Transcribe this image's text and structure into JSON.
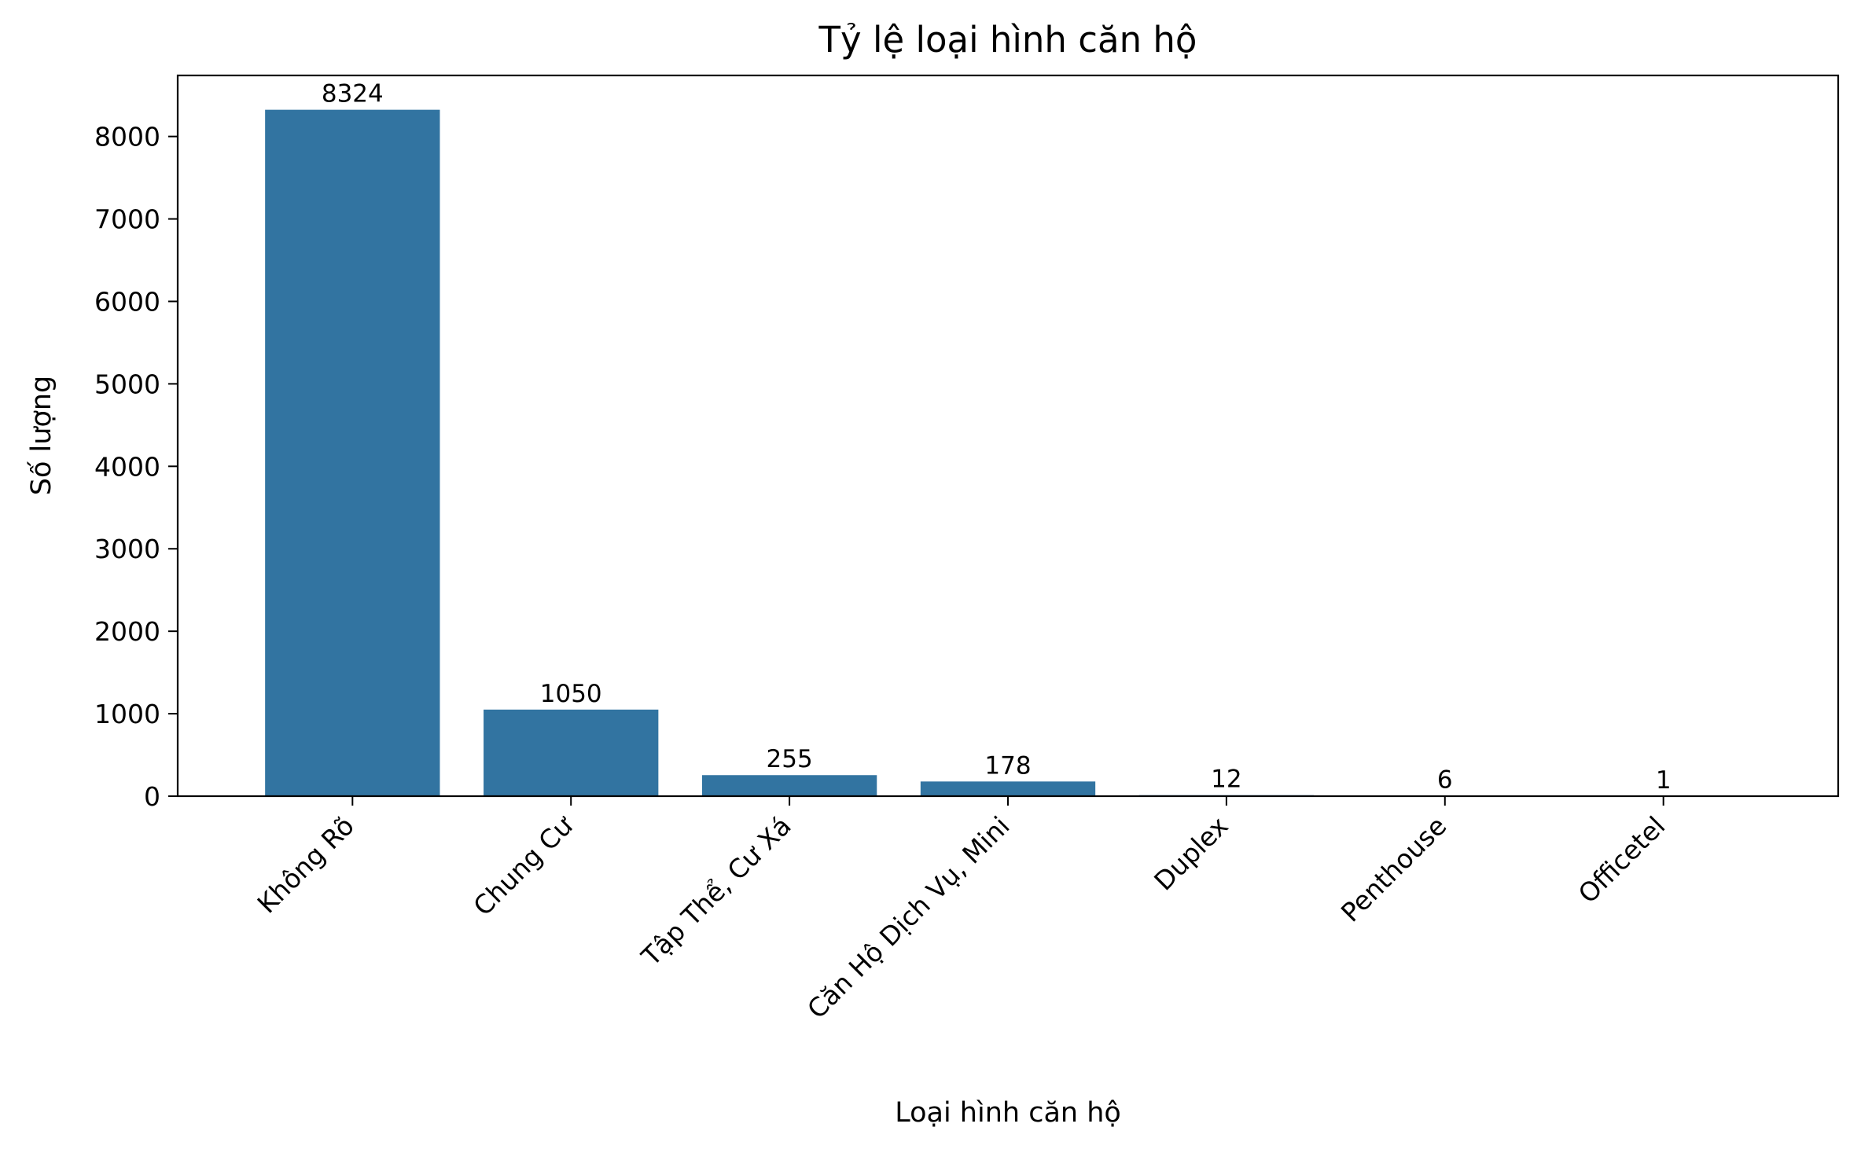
{
  "chart_data": {
    "type": "bar",
    "title": "Tỷ lệ loại hình căn hộ",
    "xlabel": "Loại hình căn hộ",
    "ylabel": "Số lượng",
    "categories": [
      "Không Rõ",
      "Chung Cư",
      "Tập Thể, Cư Xá",
      "Căn Hộ Dịch Vụ, Mini",
      "Duplex",
      "Penthouse",
      "Officetel"
    ],
    "values": [
      8324,
      1050,
      255,
      178,
      12,
      6,
      1
    ],
    "data_labels": [
      "8324",
      "1050",
      "255",
      "178",
      "12",
      "6",
      "1"
    ],
    "yticks": [
      0,
      1000,
      2000,
      3000,
      4000,
      5000,
      6000,
      7000,
      8000
    ],
    "ytick_labels": [
      "0",
      "1000",
      "2000",
      "3000",
      "4000",
      "5000",
      "6000",
      "7000",
      "8000"
    ],
    "ylim": [
      0,
      8740
    ],
    "grid": false,
    "legend": "none",
    "colors": {
      "bar": "#3274a1",
      "axes": "#000000",
      "background": "#ffffff"
    }
  }
}
